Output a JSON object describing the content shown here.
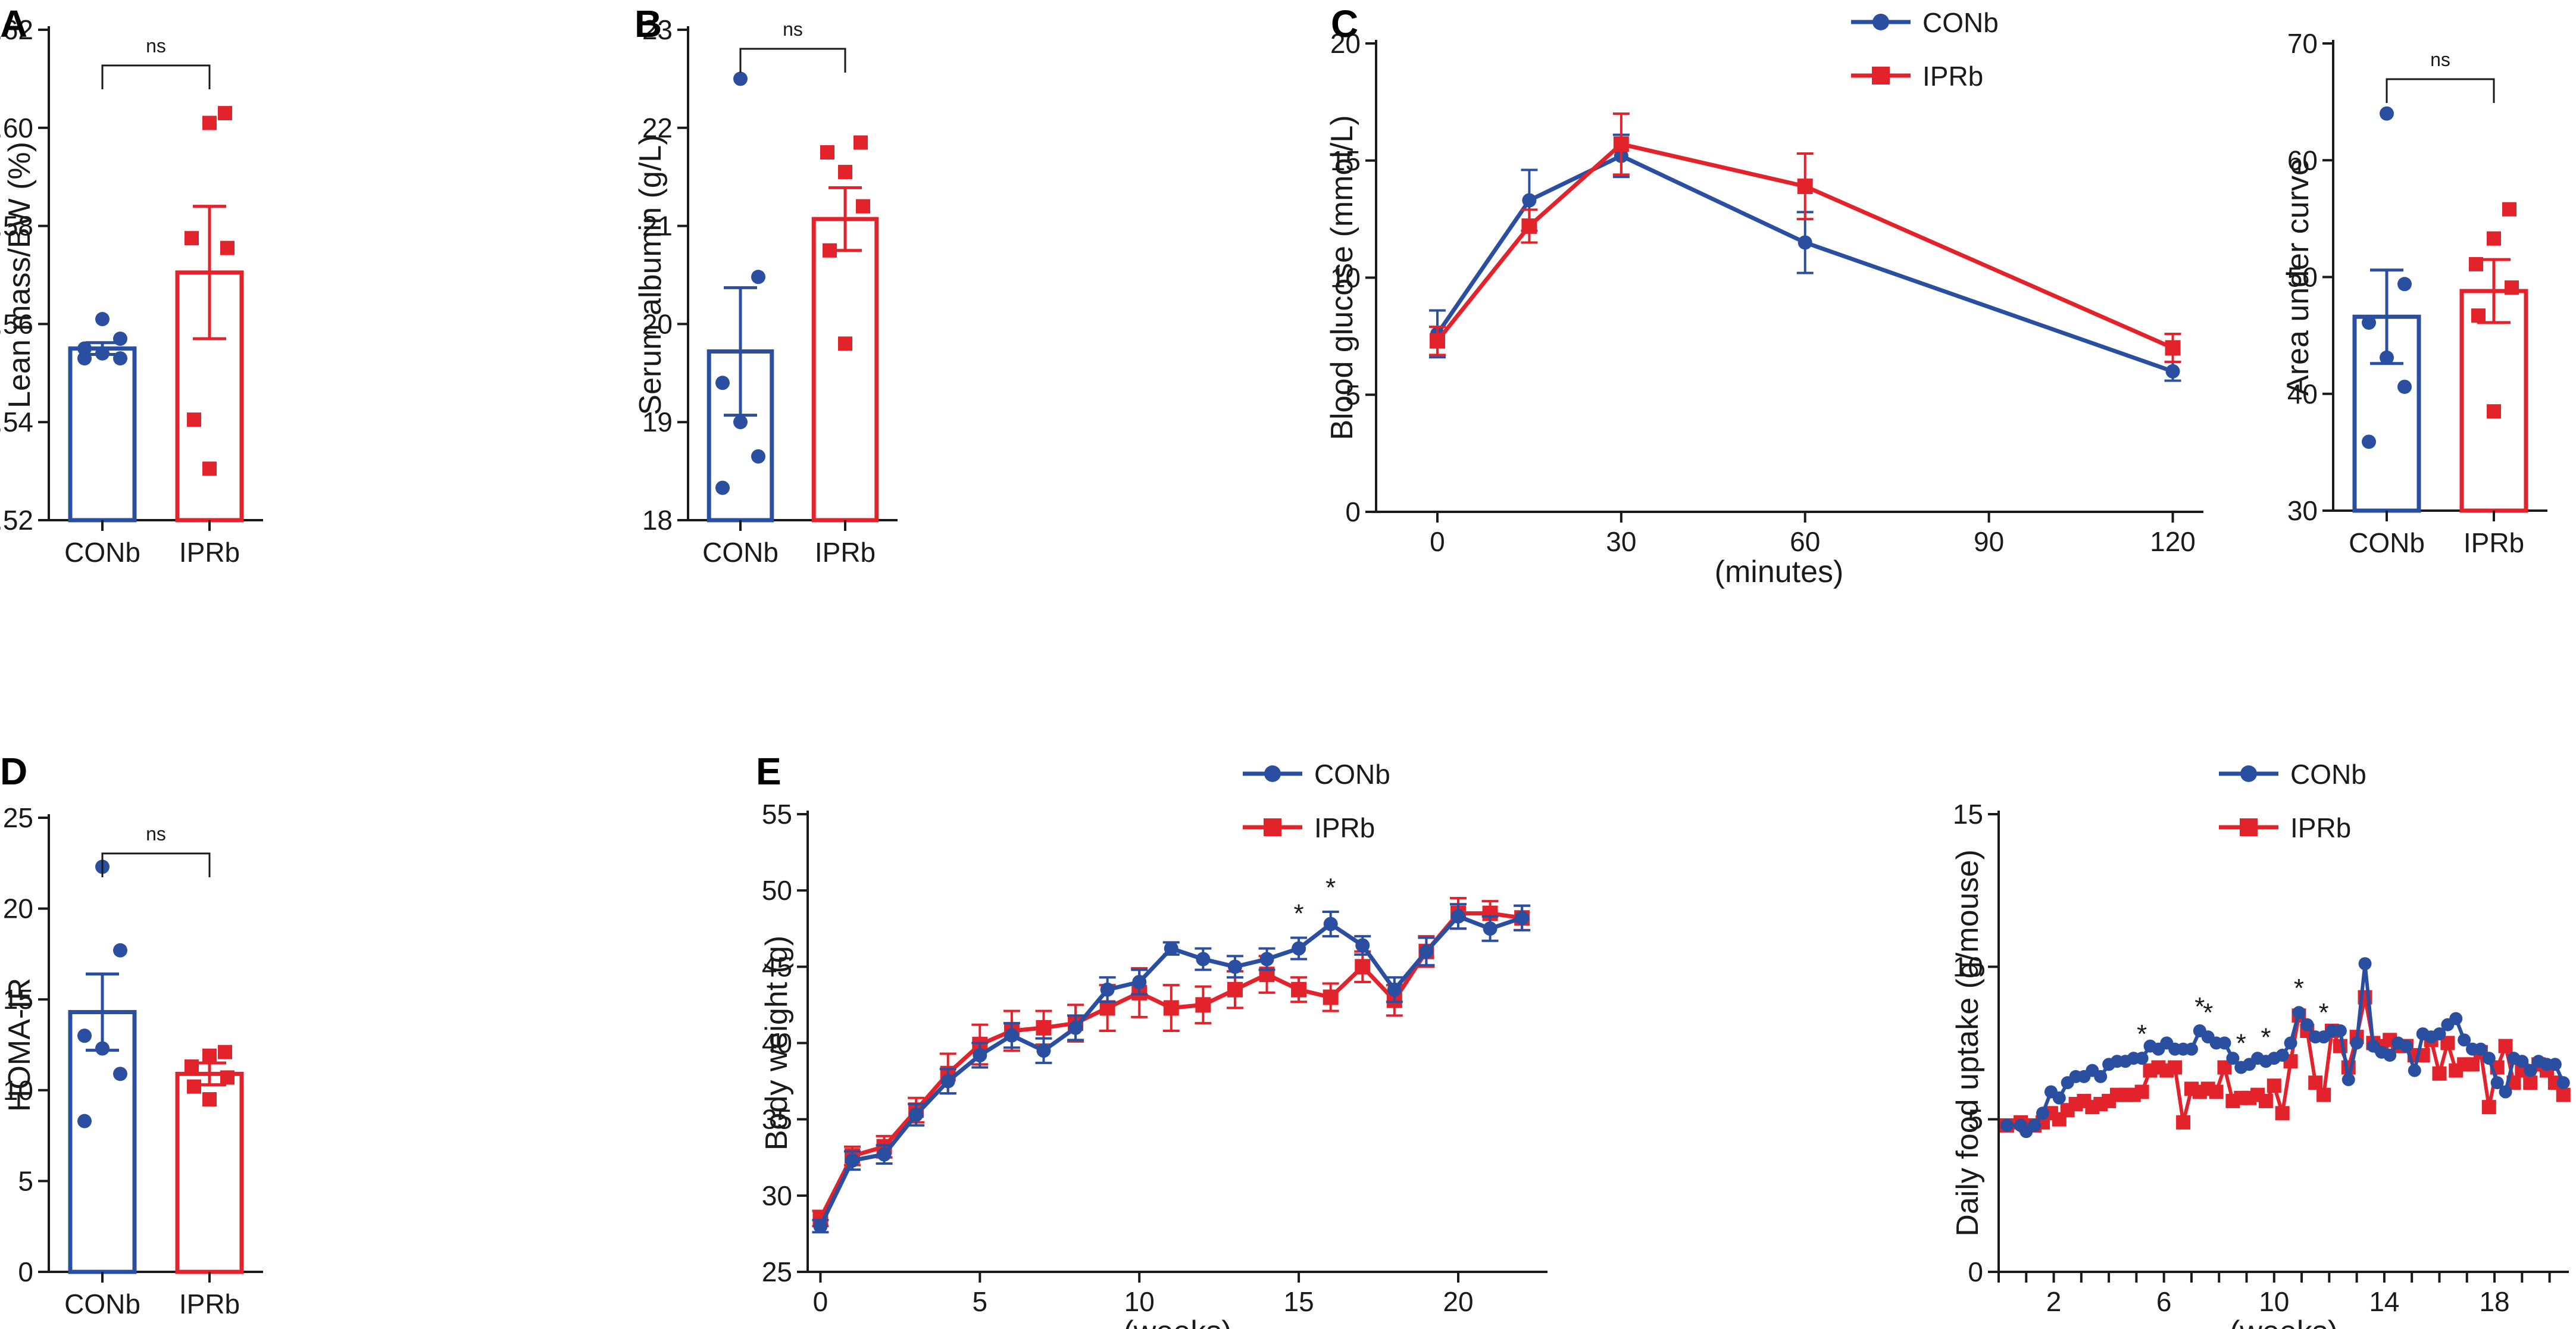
{
  "colors": {
    "con": "#2a4fa0",
    "ipr": "#e3232b",
    "axis": "#1a1a1a"
  },
  "chart_data": [
    {
      "panel": "A",
      "type": "bar",
      "title": "",
      "ylabel": "Lean mass/BW (%)",
      "xlabel": "",
      "ylim": [
        0.52,
        0.62
      ],
      "yticks": [
        0.52,
        0.54,
        0.56,
        0.58,
        0.6,
        0.62
      ],
      "ytick_labels": [
        "0.52",
        "0.54",
        "0.56",
        "0.58",
        "0.60",
        "0.62"
      ],
      "categories": [
        "CONb",
        "IPRb"
      ],
      "means": [
        0.555,
        0.5705
      ],
      "sem": [
        0.0012,
        0.0135
      ],
      "points": [
        [
          0.561,
          0.557,
          0.555,
          0.554,
          0.553,
          0.553
        ],
        [
          0.603,
          0.601,
          0.5775,
          0.5755,
          0.5405,
          0.5305
        ]
      ],
      "significance": "ns"
    },
    {
      "panel": "B",
      "type": "bar",
      "title": "",
      "ylabel": "Serum albumin (g/L)",
      "xlabel": "",
      "ylim": [
        18,
        23
      ],
      "yticks": [
        18,
        19,
        20,
        21,
        22,
        23
      ],
      "ytick_labels": [
        "18",
        "19",
        "20",
        "21",
        "22",
        "23"
      ],
      "categories": [
        "CONb",
        "IPRb"
      ],
      "means": [
        19.72,
        21.07
      ],
      "sem": [
        0.65,
        0.32
      ],
      "points": [
        [
          22.5,
          20.48,
          19.4,
          19.0,
          18.65,
          18.33
        ],
        [
          21.85,
          21.55,
          21.75,
          21.2,
          20.75,
          19.8
        ]
      ],
      "significance": "ns"
    },
    {
      "panel": "C",
      "type": "line",
      "title": "",
      "ylabel": "Blood glucose (mmol/L)",
      "xlabel": "(minutes)",
      "xlim": [
        -10,
        125
      ],
      "ylim": [
        0,
        20
      ],
      "xticks": [
        0,
        30,
        60,
        90,
        120
      ],
      "xtick_labels": [
        "0",
        "30",
        "60",
        "90",
        "120"
      ],
      "yticks": [
        0,
        5,
        10,
        15,
        20
      ],
      "ytick_labels": [
        "0",
        "5",
        "10",
        "15",
        "20"
      ],
      "series": [
        {
          "name": "CONb",
          "x": [
            0,
            15,
            30,
            60,
            120
          ],
          "y": [
            7.6,
            13.3,
            15.2,
            11.5,
            6.0
          ],
          "err": [
            1.0,
            1.3,
            0.9,
            1.3,
            0.4
          ]
        },
        {
          "name": "IPRb",
          "x": [
            0,
            15,
            30,
            60,
            120
          ],
          "y": [
            7.3,
            12.2,
            15.7,
            13.9,
            7.0
          ],
          "err": [
            0.6,
            0.7,
            1.3,
            1.4,
            0.6
          ]
        }
      ],
      "legend": "top-right"
    },
    {
      "panel": "C-AUC",
      "type": "bar",
      "title": "",
      "ylabel": "Area under curve",
      "xlabel": "",
      "ylim": [
        30,
        70
      ],
      "yticks": [
        30,
        40,
        50,
        60,
        70
      ],
      "ytick_labels": [
        "30",
        "40",
        "50",
        "60",
        "70"
      ],
      "categories": [
        "CONb",
        "IPRb"
      ],
      "means": [
        46.6,
        48.8
      ],
      "sem": [
        4.0,
        2.7
      ],
      "points": [
        [
          64.0,
          49.4,
          46.1,
          43.1,
          40.6,
          35.9
        ],
        [
          55.8,
          53.3,
          51.1,
          49.1,
          46.7,
          38.5
        ]
      ],
      "significance": "ns"
    },
    {
      "panel": "D",
      "type": "bar",
      "title": "",
      "ylabel": "HOMA-IR",
      "xlabel": "",
      "ylim": [
        0,
        25
      ],
      "yticks": [
        0,
        5,
        10,
        15,
        20,
        25
      ],
      "ytick_labels": [
        "0",
        "5",
        "10",
        "15",
        "20",
        "25"
      ],
      "categories": [
        "CONb",
        "IPRb"
      ],
      "means": [
        14.3,
        10.9
      ],
      "sem": [
        2.1,
        0.6
      ],
      "points": [
        [
          22.3,
          17.7,
          13.0,
          12.3,
          10.9,
          8.3
        ],
        [
          12.1,
          11.9,
          11.3,
          10.7,
          10.2,
          9.5
        ]
      ],
      "significance": "ns"
    },
    {
      "panel": "E1",
      "type": "line",
      "title": "",
      "ylabel": "Body weight (g)",
      "xlabel": "(weeks)",
      "xlim": [
        -0.4,
        22.8
      ],
      "ylim": [
        25,
        55
      ],
      "xticks": [
        0,
        5,
        10,
        15,
        20
      ],
      "xtick_labels": [
        "0",
        "5",
        "10",
        "15",
        "20"
      ],
      "yticks": [
        25,
        30,
        35,
        40,
        45,
        50,
        55
      ],
      "ytick_labels": [
        "25",
        "30",
        "35",
        "40",
        "45",
        "50",
        "55"
      ],
      "series": [
        {
          "name": "CONb",
          "x": [
            0,
            1,
            2,
            3,
            4,
            5,
            6,
            7,
            8,
            9,
            10,
            11,
            12,
            13,
            14,
            15,
            16,
            17,
            18,
            19,
            20,
            21,
            22
          ],
          "y": [
            28.0,
            32.3,
            32.7,
            35.3,
            37.5,
            39.2,
            40.5,
            39.5,
            41.0,
            43.5,
            44.0,
            46.2,
            45.5,
            45.0,
            45.5,
            46.2,
            47.8,
            46.4,
            43.5,
            46.0,
            48.3,
            47.5,
            48.2
          ],
          "err": [
            0.4,
            0.6,
            0.6,
            0.7,
            0.8,
            0.8,
            0.8,
            0.8,
            0.8,
            0.8,
            0.8,
            0.4,
            0.7,
            0.7,
            0.7,
            0.7,
            0.8,
            0.6,
            0.8,
            0.9,
            0.8,
            0.8,
            0.8
          ]
        },
        {
          "name": "IPRb",
          "x": [
            0,
            1,
            2,
            3,
            4,
            5,
            6,
            7,
            8,
            9,
            10,
            11,
            12,
            13,
            14,
            15,
            16,
            17,
            18,
            19,
            20,
            21,
            22
          ],
          "y": [
            28.5,
            32.6,
            33.2,
            35.6,
            38.0,
            39.9,
            40.8,
            41.0,
            41.3,
            42.3,
            43.3,
            42.3,
            42.5,
            43.5,
            44.5,
            43.5,
            43.0,
            45.0,
            42.8,
            46.0,
            48.5,
            48.5,
            48.2
          ],
          "err": [
            0.5,
            0.6,
            0.7,
            0.8,
            1.3,
            1.3,
            1.3,
            1.1,
            1.2,
            1.5,
            1.6,
            1.5,
            1.2,
            1.2,
            1.2,
            0.8,
            0.9,
            1.0,
            1.0,
            1.0,
            1.0,
            0.8,
            0.8
          ]
        }
      ],
      "significance_marks": [
        {
          "x": 15,
          "label": "*"
        },
        {
          "x": 16,
          "label": "*"
        }
      ],
      "legend": "top-right"
    },
    {
      "panel": "E2",
      "type": "line",
      "title": "",
      "ylabel": "Daily food uptake (g/mouse)",
      "xlabel": "(weeks)",
      "xlim": [
        0,
        20.7
      ],
      "ylim": [
        0,
        15
      ],
      "xticks": [
        0,
        1,
        2,
        3,
        4,
        5,
        6,
        7,
        8,
        9,
        10,
        11,
        12,
        13,
        14,
        15,
        16,
        17,
        18,
        19,
        20
      ],
      "xtick_labels": [
        "",
        "",
        "2",
        "",
        "",
        "",
        "6",
        "",
        "",
        "",
        "10",
        "",
        "",
        "",
        "14",
        "",
        "",
        "",
        "18",
        "",
        ""
      ],
      "yticks": [
        0,
        5,
        10,
        15
      ],
      "ytick_labels": [
        "0",
        "5",
        "10",
        "15"
      ],
      "series": [
        {
          "name": "CONb",
          "x": [
            0.3,
            0.8,
            1.0,
            1.3,
            1.6,
            1.9,
            2.2,
            2.5,
            2.8,
            3.1,
            3.4,
            3.7,
            4.0,
            4.3,
            4.6,
            4.9,
            5.2,
            5.5,
            5.8,
            6.1,
            6.4,
            6.7,
            7.0,
            7.3,
            7.6,
            7.9,
            8.2,
            8.5,
            8.8,
            9.1,
            9.4,
            9.7,
            10.0,
            10.3,
            10.6,
            10.9,
            11.2,
            11.5,
            11.8,
            12.1,
            12.4,
            12.7,
            13.0,
            13.3,
            13.6,
            13.9,
            14.2,
            14.5,
            14.8,
            15.1,
            15.4,
            15.7,
            16.0,
            16.3,
            16.6,
            16.9,
            17.2,
            17.5,
            17.8,
            18.1,
            18.4,
            18.7,
            19.0,
            19.3,
            19.6,
            19.9,
            20.2,
            20.5
          ],
          "y": [
            4.8,
            4.8,
            4.6,
            4.8,
            5.2,
            5.9,
            5.7,
            6.2,
            6.4,
            6.4,
            6.6,
            6.4,
            6.8,
            6.9,
            6.9,
            7.0,
            7.0,
            7.4,
            7.3,
            7.5,
            7.3,
            7.3,
            7.3,
            7.9,
            7.7,
            7.5,
            7.5,
            7.0,
            6.7,
            6.8,
            7.0,
            6.9,
            7.0,
            7.1,
            7.5,
            8.5,
            8.1,
            7.7,
            7.7,
            7.9,
            7.9,
            6.3,
            7.5,
            10.1,
            7.4,
            7.2,
            7.1,
            7.5,
            7.4,
            6.6,
            7.8,
            7.7,
            7.8,
            8.1,
            8.3,
            7.6,
            7.3,
            7.3,
            7.0,
            6.2,
            5.9,
            7.0,
            6.9,
            6.6,
            6.9,
            6.8,
            6.8,
            6.2
          ]
        },
        {
          "name": "IPRb",
          "x": [
            0.3,
            0.8,
            1.0,
            1.3,
            1.6,
            1.9,
            2.2,
            2.5,
            2.8,
            3.1,
            3.4,
            3.7,
            4.0,
            4.3,
            4.6,
            4.9,
            5.2,
            5.5,
            5.8,
            6.1,
            6.4,
            6.7,
            7.0,
            7.3,
            7.6,
            7.9,
            8.2,
            8.5,
            8.8,
            9.1,
            9.4,
            9.7,
            10.0,
            10.3,
            10.6,
            10.9,
            11.2,
            11.5,
            11.8,
            12.1,
            12.4,
            12.7,
            13.0,
            13.3,
            13.6,
            13.9,
            14.2,
            14.5,
            14.8,
            15.1,
            15.4,
            15.7,
            16.0,
            16.3,
            16.6,
            16.9,
            17.2,
            17.5,
            17.8,
            18.1,
            18.4,
            18.7,
            19.0,
            19.3,
            19.6,
            19.9,
            20.2,
            20.5
          ],
          "y": [
            4.8,
            4.9,
            4.8,
            4.8,
            4.9,
            5.2,
            5.0,
            5.3,
            5.5,
            5.6,
            5.4,
            5.5,
            5.6,
            5.8,
            5.8,
            5.8,
            5.9,
            6.6,
            6.7,
            6.6,
            6.7,
            4.9,
            6.0,
            5.9,
            6.0,
            5.9,
            6.7,
            5.6,
            5.7,
            5.7,
            5.8,
            5.6,
            6.1,
            5.2,
            6.9,
            8.4,
            7.9,
            6.2,
            5.8,
            7.9,
            7.4,
            6.7,
            7.7,
            9.0,
            7.5,
            7.4,
            7.6,
            7.4,
            7.4,
            7.1,
            7.1,
            7.6,
            6.5,
            7.5,
            6.6,
            6.8,
            6.8,
            7.2,
            5.4,
            6.7,
            7.4,
            6.2,
            6.6,
            6.2,
            6.8,
            6.6,
            6.2,
            5.8
          ]
        }
      ],
      "significance_marks": [
        {
          "x": 5.2,
          "label": "*"
        },
        {
          "x": 7.3,
          "label": "*"
        },
        {
          "x": 7.6,
          "label": "*"
        },
        {
          "x": 8.8,
          "label": "*"
        },
        {
          "x": 9.7,
          "label": "*"
        },
        {
          "x": 10.9,
          "label": "*"
        },
        {
          "x": 11.8,
          "label": "*"
        }
      ],
      "legend": "top-right"
    }
  ]
}
